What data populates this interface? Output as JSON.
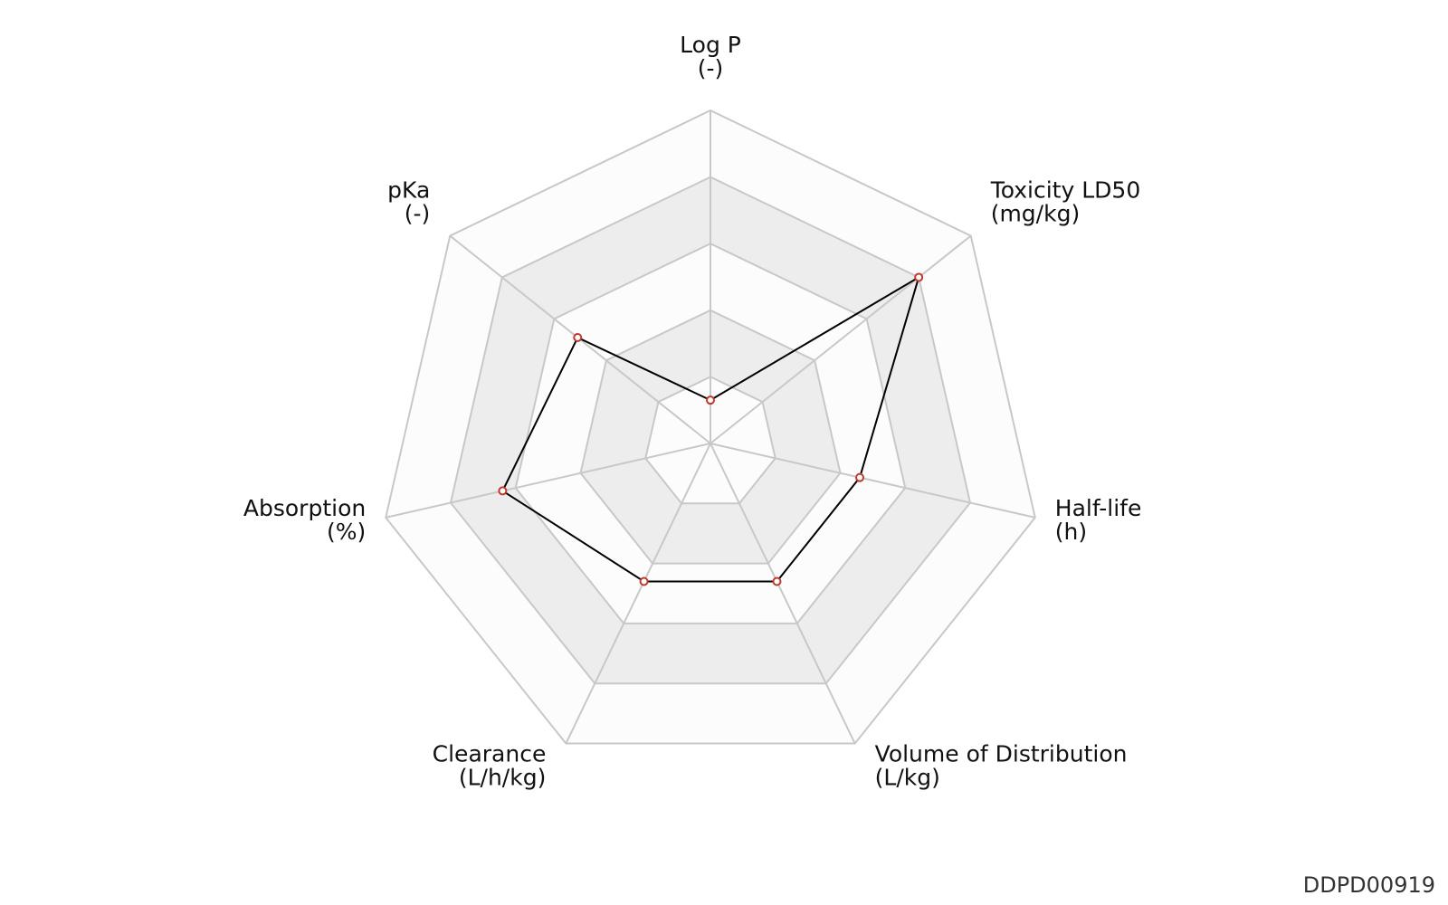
{
  "chart_data": {
    "type": "radar",
    "axes": [
      {
        "name": "Log P",
        "unit": "(-)"
      },
      {
        "name": "Toxicity LD50",
        "unit": "(mg/kg)"
      },
      {
        "name": "Half-life",
        "unit": "(h)"
      },
      {
        "name": "Volume of Distribution",
        "unit": "(L/kg)"
      },
      {
        "name": "Clearance",
        "unit": "(L/h/kg)"
      },
      {
        "name": "Absorption",
        "unit": "(%)"
      },
      {
        "name": "pKa",
        "unit": "(-)"
      }
    ],
    "series": [
      {
        "values": [
          0.13,
          0.8,
          0.46,
          0.46,
          0.46,
          0.64,
          0.51
        ]
      }
    ],
    "range": [
      0,
      1
    ],
    "rings": 5,
    "ring_bands_shaded": true,
    "grid": true,
    "legend": "none",
    "colors": {
      "grid": "#c8c8c8",
      "band_light": "#fcfcfc",
      "band_dark": "#ededed",
      "line": "#000000",
      "marker": "#c0392b"
    }
  },
  "footer": {
    "id": "DDPD00919"
  }
}
